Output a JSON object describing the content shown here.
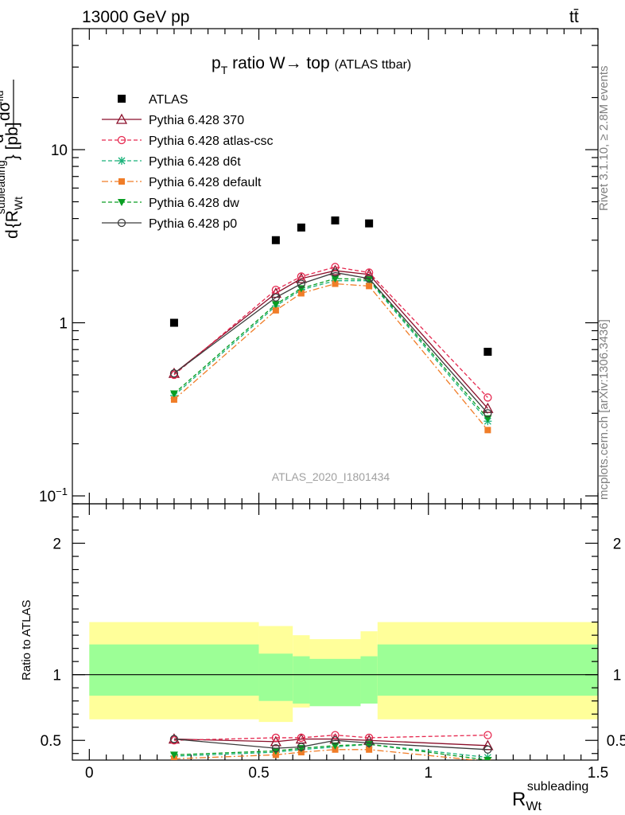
{
  "header": {
    "left": "13000 GeV pp",
    "right": "tt̄"
  },
  "side_text": {
    "top": "Rivet 3.1.10, ≥ 2.8M events",
    "bottom": "mcplots.cern.ch [arXiv:1306.3436]"
  },
  "chart_data": {
    "type": "scatter",
    "title_main": "p",
    "title_sub": "T",
    "title_rest": " ratio W→ top",
    "title_small": "(ATLAS ttbar)",
    "ylabel": "dσ^fid / d{R_Wt^subleading} [pb]",
    "ylabel_parts": {
      "d1": "d",
      "sigma": "dσ",
      "sigma_sup": "fid",
      "d2": "d",
      "brace_open": "{R",
      "r_sup": "subleading",
      "r_sub": "Wt",
      "brace_close": "} [pb]"
    },
    "xlabel_main": "R",
    "xlabel_sup": "subleading",
    "xlabel_sub": "Wt",
    "watermark": "ATLAS_2020_I1801434",
    "xlim": [
      -0.05,
      1.5
    ],
    "ylim": [
      0.09,
      50
    ],
    "yscale": "log",
    "y_ticks": [
      {
        "v": 0.1,
        "base": "10",
        "exp": "−1"
      },
      {
        "v": 1,
        "label": "1"
      },
      {
        "v": 10,
        "label": "10"
      }
    ],
    "x_ticks": [
      0,
      0.5,
      1,
      1.5
    ],
    "x_tick_labels": [
      "0",
      "0.5",
      "1",
      "1.5"
    ],
    "x": [
      0.25,
      0.55,
      0.625,
      0.725,
      0.825,
      1.175
    ],
    "series": [
      {
        "name": "ATLAS",
        "values": [
          1.0,
          3.0,
          3.55,
          3.9,
          3.75,
          0.68
        ],
        "color": "#000000",
        "marker": "square",
        "line": "none"
      },
      {
        "name": "Pythia 6.428 370",
        "values": [
          0.51,
          1.48,
          1.8,
          2.0,
          1.9,
          0.32
        ],
        "color": "#8b0f2a",
        "marker": "triangle-open",
        "line": "solid"
      },
      {
        "name": "Pythia 6.428 atlas-csc",
        "values": [
          0.5,
          1.55,
          1.85,
          2.1,
          1.95,
          0.37
        ],
        "color": "#e6284f",
        "marker": "circle-open",
        "line": "dashed"
      },
      {
        "name": "Pythia 6.428 d6t",
        "values": [
          0.38,
          1.25,
          1.55,
          1.75,
          1.75,
          0.27
        ],
        "color": "#19b27a",
        "marker": "star",
        "line": "dashed"
      },
      {
        "name": "Pythia 6.428 default",
        "values": [
          0.36,
          1.18,
          1.48,
          1.68,
          1.63,
          0.24
        ],
        "color": "#f07d28",
        "marker": "square-small",
        "line": "dashdot"
      },
      {
        "name": "Pythia 6.428 dw",
        "values": [
          0.39,
          1.28,
          1.58,
          1.8,
          1.78,
          0.28
        ],
        "color": "#0a9e23",
        "marker": "triangle-down",
        "line": "dashed"
      },
      {
        "name": "Pythia 6.428 p0",
        "values": [
          0.51,
          1.4,
          1.68,
          1.95,
          1.8,
          0.3
        ],
        "color": "#3c3c3c",
        "marker": "circle-open",
        "line": "solid"
      }
    ],
    "ratio": {
      "ylabel": "Ratio to ATLAS",
      "ylim": [
        0.35,
        2.3
      ],
      "y_ticks": [
        0.5,
        1,
        2
      ],
      "y_tick_labels": [
        "0.5",
        "1",
        "2"
      ],
      "bins": [
        {
          "x0": 0.0,
          "x1": 0.5,
          "inner": [
            0.84,
            1.23
          ],
          "outer": [
            0.66,
            1.4
          ]
        },
        {
          "x0": 0.5,
          "x1": 0.6,
          "inner": [
            0.8,
            1.16
          ],
          "outer": [
            0.64,
            1.37
          ]
        },
        {
          "x0": 0.6,
          "x1": 0.65,
          "inner": [
            0.78,
            1.14
          ],
          "outer": [
            0.75,
            1.3
          ]
        },
        {
          "x0": 0.65,
          "x1": 0.8,
          "inner": [
            0.76,
            1.12
          ],
          "outer": [
            0.82,
            1.27
          ]
        },
        {
          "x0": 0.8,
          "x1": 0.85,
          "inner": [
            0.78,
            1.14
          ],
          "outer": [
            0.79,
            1.33
          ]
        },
        {
          "x0": 0.85,
          "x1": 1.5,
          "inner": [
            0.84,
            1.23
          ],
          "outer": [
            0.66,
            1.4
          ]
        }
      ],
      "series": [
        {
          "name": "Pythia 6.428 370",
          "values": [
            0.51,
            0.49,
            0.51,
            0.51,
            0.5,
            0.46
          ]
        },
        {
          "name": "Pythia 6.428 atlas-csc",
          "values": [
            0.5,
            0.52,
            0.52,
            0.54,
            0.52,
            0.54
          ]
        },
        {
          "name": "Pythia 6.428 d6t",
          "values": [
            0.38,
            0.41,
            0.43,
            0.45,
            0.47,
            0.37
          ]
        },
        {
          "name": "Pythia 6.428 default",
          "values": [
            0.36,
            0.39,
            0.41,
            0.43,
            0.43,
            0.34
          ]
        },
        {
          "name": "Pythia 6.428 dw",
          "values": [
            0.39,
            0.42,
            0.44,
            0.46,
            0.47,
            0.35
          ]
        },
        {
          "name": "Pythia 6.428 p0",
          "values": [
            0.51,
            0.44,
            0.45,
            0.5,
            0.48,
            0.43
          ]
        }
      ]
    },
    "band_colors": {
      "inner": "#9cff96",
      "outer": "#ffff9a"
    }
  }
}
